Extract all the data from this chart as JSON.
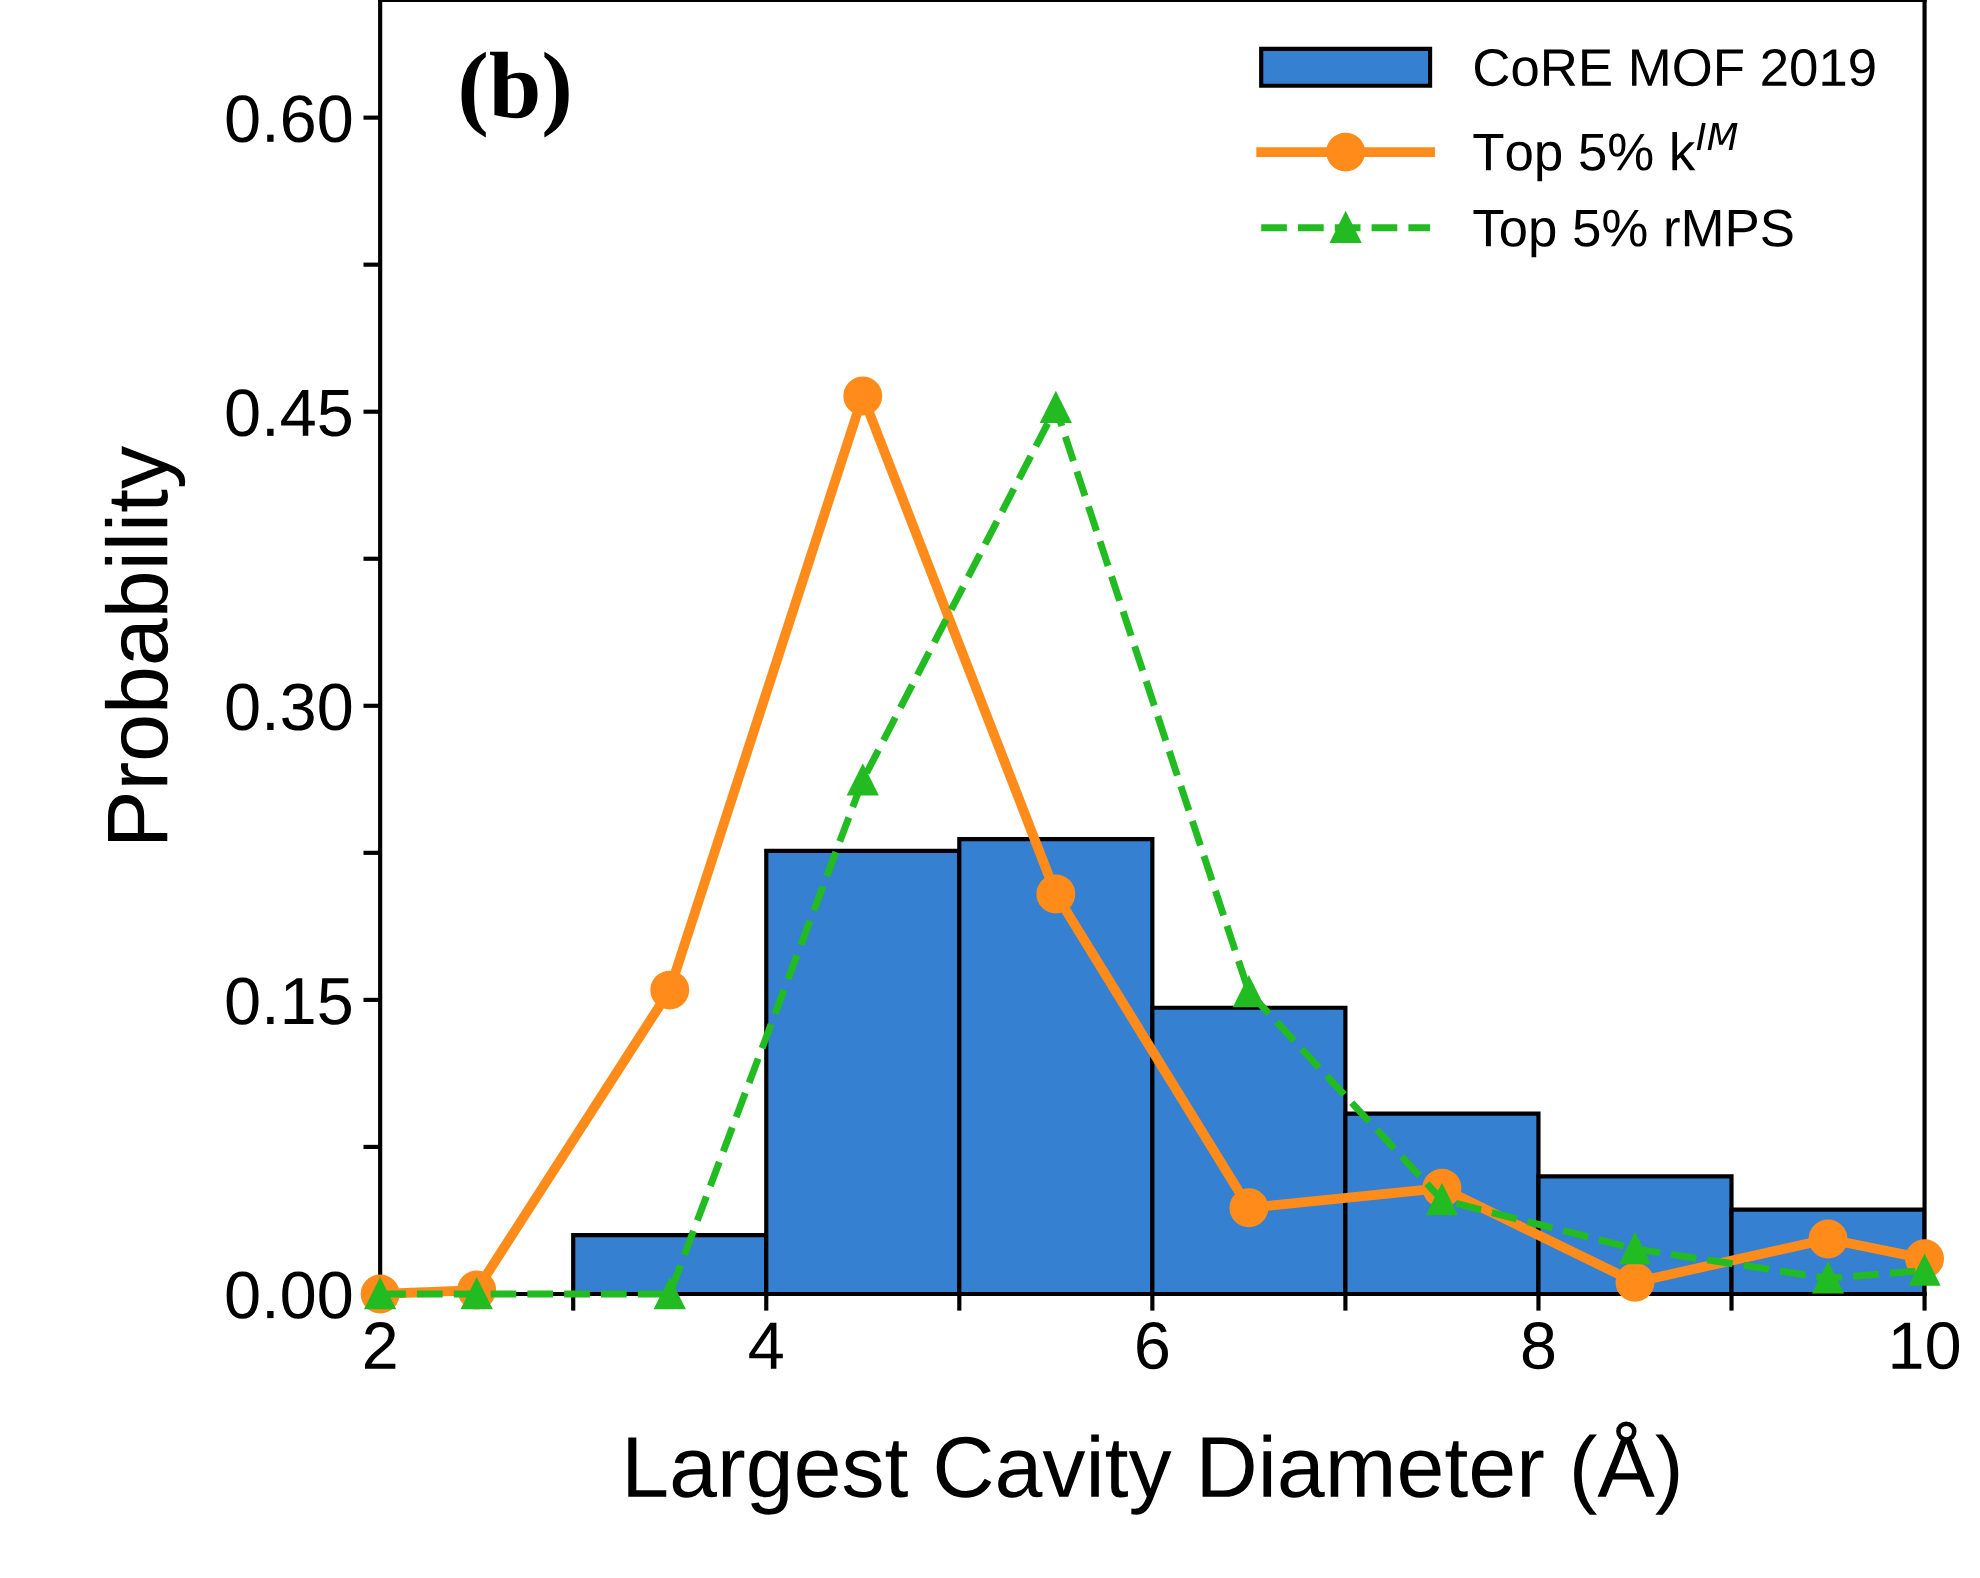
{
  "chart_data": {
    "type": "histogram",
    "xlabel": "Largest Cavity Diameter (Å)",
    "ylabel": "Probability",
    "annotations": [
      "(b)"
    ],
    "series": [
      {
        "name": "CoRE MOF 2019",
        "color": "#3580d0",
        "bins": [
          2,
          3,
          4,
          5,
          6,
          7,
          8,
          9,
          10
        ],
        "values": [
          0,
          0.03,
          0.226,
          0.232,
          0.146,
          0.092,
          0.06,
          0.043
        ]
      },
      {
        "type": "line",
        "name": "Top 5% k$^{IM}$",
        "color": "#ff8c1a",
        "marker": "circle",
        "line_style": "solid",
        "x": [
          2,
          2.5,
          3.5,
          4.5,
          5.5,
          6.5,
          7.5,
          8.5,
          9.5,
          10
        ],
        "values": [
          0,
          0.002,
          0.155,
          0.458,
          0.204,
          0.044,
          0.054,
          0.006,
          0.028,
          0.018
        ]
      },
      {
        "type": "line",
        "name": "Top 5% rMPS",
        "color": "#22bb22",
        "marker": "triangle",
        "line_style": "dashed",
        "x": [
          2,
          2.5,
          3.5,
          4.5,
          5.5,
          6.5,
          7.5,
          8.5,
          9.5,
          10
        ],
        "values": [
          0,
          0,
          0,
          0.262,
          0.452,
          0.154,
          0.048,
          0.023,
          0.008,
          0.012
        ]
      }
    ],
    "xlim": [
      2,
      10
    ],
    "ylim": [
      0,
      0.66
    ],
    "xticks": [
      2,
      {
        "value": 3,
        "label": null
      },
      4,
      {
        "value": 5,
        "label": null
      },
      6,
      {
        "value": 7,
        "label": null
      },
      8,
      {
        "value": 9,
        "label": null
      },
      10
    ],
    "yticks": [
      {
        "value": 0,
        "label": "0.00"
      },
      {
        "value": 0.075,
        "label": null
      },
      {
        "value": 0.15,
        "label": "0.15"
      },
      {
        "value": 0.225,
        "label": null
      },
      {
        "value": 0.3,
        "label": "0.30"
      },
      {
        "value": 0.375,
        "label": null
      },
      {
        "value": 0.45,
        "label": "0.45"
      },
      {
        "value": 0.525,
        "label": null
      },
      {
        "value": 0.6,
        "label": "0.60"
      }
    ],
    "grid": false,
    "legend": "top right"
  }
}
